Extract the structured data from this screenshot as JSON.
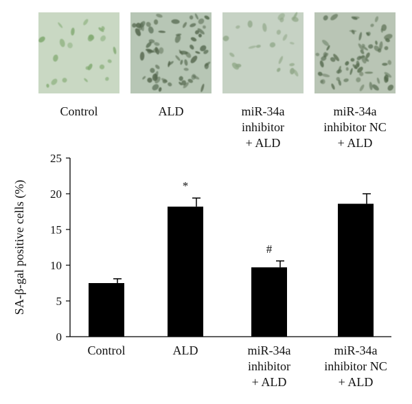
{
  "micrographs": [
    {
      "label_lines": [
        "Control"
      ],
      "tint": "#c9d8c3",
      "cell_color": "#7fa86f",
      "density": "sparse"
    },
    {
      "label_lines": [
        "ALD"
      ],
      "tint": "#b7c6b5",
      "cell_color": "#4f6248",
      "density": "dense"
    },
    {
      "label_lines": [
        "miR-34a",
        "inhibitor",
        "+ ALD"
      ],
      "tint": "#c6d2c4",
      "cell_color": "#8ea585",
      "density": "sparse"
    },
    {
      "label_lines": [
        "miR-34a",
        "inhibitor NC",
        "+ ALD"
      ],
      "tint": "#b9c5b5",
      "cell_color": "#556a4e",
      "density": "dense"
    }
  ],
  "chart_data": {
    "type": "bar",
    "categories": [
      [
        "Control"
      ],
      [
        "ALD"
      ],
      [
        "miR-34a",
        "inhibitor",
        "+ ALD"
      ],
      [
        "miR-34a",
        "inhibitor NC",
        "+ ALD"
      ]
    ],
    "values": [
      7.5,
      18.2,
      9.7,
      18.6
    ],
    "errors": [
      0.6,
      1.2,
      0.9,
      1.4
    ],
    "annotations": [
      "",
      "*",
      "#",
      ""
    ],
    "ylabel": "SA-β-gal positive cells (%)",
    "ylim": [
      0,
      25
    ],
    "yticks": [
      0,
      5,
      10,
      15,
      20,
      25
    ],
    "bar_color": "#000000",
    "grid": false
  }
}
